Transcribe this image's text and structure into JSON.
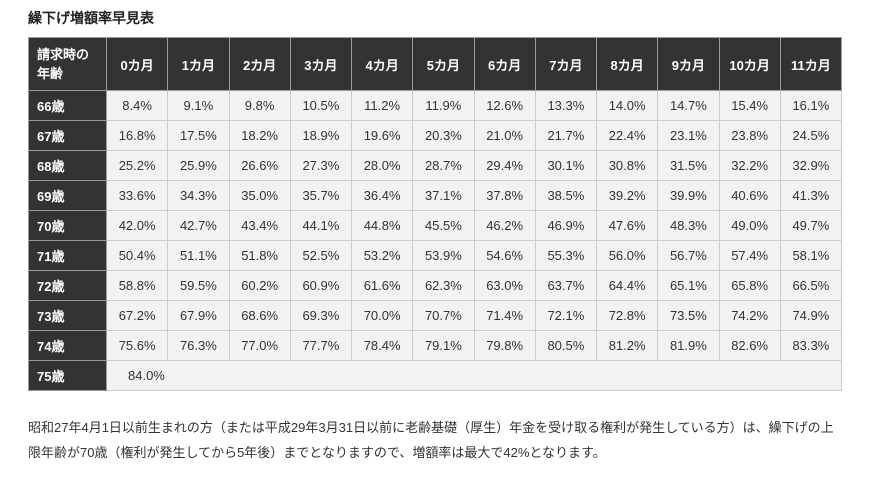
{
  "title": "繰下げ増額率早見表",
  "table": {
    "corner_header": "請求時の\n年齢",
    "month_headers": [
      "0カ月",
      "1カ月",
      "2カ月",
      "3カ月",
      "4カ月",
      "5カ月",
      "6カ月",
      "7カ月",
      "8カ月",
      "9カ月",
      "10カ月",
      "11カ月"
    ],
    "rows": [
      {
        "age": "66歳",
        "values": [
          "8.4%",
          "9.1%",
          "9.8%",
          "10.5%",
          "11.2%",
          "11.9%",
          "12.6%",
          "13.3%",
          "14.0%",
          "14.7%",
          "15.4%",
          "16.1%"
        ]
      },
      {
        "age": "67歳",
        "values": [
          "16.8%",
          "17.5%",
          "18.2%",
          "18.9%",
          "19.6%",
          "20.3%",
          "21.0%",
          "21.7%",
          "22.4%",
          "23.1%",
          "23.8%",
          "24.5%"
        ]
      },
      {
        "age": "68歳",
        "values": [
          "25.2%",
          "25.9%",
          "26.6%",
          "27.3%",
          "28.0%",
          "28.7%",
          "29.4%",
          "30.1%",
          "30.8%",
          "31.5%",
          "32.2%",
          "32.9%"
        ]
      },
      {
        "age": "69歳",
        "values": [
          "33.6%",
          "34.3%",
          "35.0%",
          "35.7%",
          "36.4%",
          "37.1%",
          "37.8%",
          "38.5%",
          "39.2%",
          "39.9%",
          "40.6%",
          "41.3%"
        ]
      },
      {
        "age": "70歳",
        "values": [
          "42.0%",
          "42.7%",
          "43.4%",
          "44.1%",
          "44.8%",
          "45.5%",
          "46.2%",
          "46.9%",
          "47.6%",
          "48.3%",
          "49.0%",
          "49.7%"
        ]
      },
      {
        "age": "71歳",
        "values": [
          "50.4%",
          "51.1%",
          "51.8%",
          "52.5%",
          "53.2%",
          "53.9%",
          "54.6%",
          "55.3%",
          "56.0%",
          "56.7%",
          "57.4%",
          "58.1%"
        ]
      },
      {
        "age": "72歳",
        "values": [
          "58.8%",
          "59.5%",
          "60.2%",
          "60.9%",
          "61.6%",
          "62.3%",
          "63.0%",
          "63.7%",
          "64.4%",
          "65.1%",
          "65.8%",
          "66.5%"
        ]
      },
      {
        "age": "73歳",
        "values": [
          "67.2%",
          "67.9%",
          "68.6%",
          "69.3%",
          "70.0%",
          "70.7%",
          "71.4%",
          "72.1%",
          "72.8%",
          "73.5%",
          "74.2%",
          "74.9%"
        ]
      },
      {
        "age": "74歳",
        "values": [
          "75.6%",
          "76.3%",
          "77.0%",
          "77.7%",
          "78.4%",
          "79.1%",
          "79.8%",
          "80.5%",
          "81.2%",
          "81.9%",
          "82.6%",
          "83.3%"
        ]
      },
      {
        "age": "75歳",
        "values": [
          "84.0%"
        ]
      }
    ]
  },
  "footer_note": "昭和27年4月1日以前生まれの方（または平成29年3月31日以前に老齢基礎（厚生）年金を受け取る権利が発生している方）は、繰下げの上限年齢が70歳（権利が発生してから5年後）までとなりますので、増額率は最大で42%となります。",
  "colors": {
    "header_bg": "#333333",
    "header_text": "#ffffff",
    "cell_bg": "#f2f2f2",
    "border": "#cccccc"
  }
}
